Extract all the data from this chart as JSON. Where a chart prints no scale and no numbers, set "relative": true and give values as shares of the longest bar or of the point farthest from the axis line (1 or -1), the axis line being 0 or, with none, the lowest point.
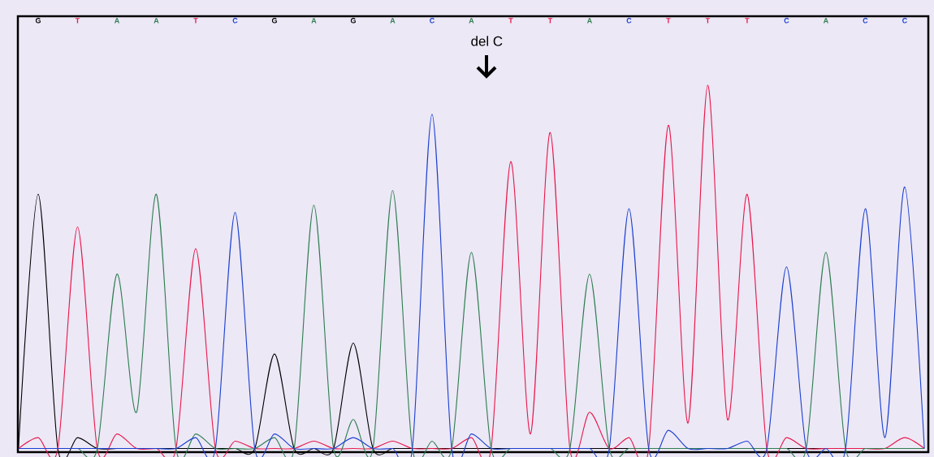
{
  "chart_data": {
    "type": "line",
    "relative": true,
    "marker": "none",
    "line_style": "solid",
    "categories": [
      null,
      "G",
      null,
      "T",
      null,
      "A",
      null,
      "A",
      null,
      "T",
      null,
      "C",
      null,
      "G",
      null,
      "A",
      null,
      "G",
      null,
      "A",
      null,
      "C",
      null,
      "A",
      null,
      "T",
      null,
      "T",
      null,
      "A",
      null,
      "C",
      null,
      "T",
      null,
      "T",
      null,
      "T",
      null,
      "C",
      null,
      "A",
      null,
      "C",
      null,
      "C",
      null
    ],
    "annotations": [
      "del C"
    ],
    "series": [
      {
        "color": "#000000",
        "values": [
          0,
          0.7,
          0,
          0.03,
          0,
          0,
          0,
          0,
          0,
          0,
          0,
          0,
          0,
          0.26,
          0,
          0,
          0,
          0.29,
          0,
          0,
          0,
          0,
          0,
          0,
          0,
          0,
          0,
          0,
          0,
          0,
          0,
          0,
          0,
          0,
          0,
          0,
          0,
          0,
          0,
          0,
          0,
          0,
          0,
          0,
          0,
          null,
          null
        ]
      },
      {
        "color": "#e8174a",
        "values": [
          0,
          0.03,
          0,
          0.61,
          0,
          0.04,
          0,
          0,
          0,
          0.55,
          0,
          0.02,
          0,
          0,
          0,
          0.02,
          0,
          0,
          0,
          0.02,
          0,
          0,
          0,
          0.03,
          0,
          0.79,
          0.04,
          0.87,
          0,
          0.1,
          0,
          0.03,
          0,
          0.89,
          0.07,
          1,
          0.08,
          0.7,
          0,
          0.03,
          0,
          0,
          0,
          0,
          0,
          0.03,
          0
        ]
      },
      {
        "color": "#2e7d4f",
        "values": [
          null,
          null,
          0,
          0,
          0,
          0.48,
          0.1,
          0.7,
          0,
          0.04,
          0,
          0,
          0,
          0.03,
          0,
          0.67,
          0,
          0.08,
          0,
          0.71,
          0,
          0.02,
          0,
          0.54,
          0,
          0,
          0,
          0,
          0,
          0.48,
          0,
          0,
          0,
          0,
          0,
          0,
          0,
          0,
          0,
          0,
          0,
          0.54,
          0,
          0,
          0,
          0,
          0
        ]
      },
      {
        "color": "#1a3fcf",
        "values": [
          0,
          0,
          0,
          0,
          0,
          0,
          0,
          0,
          0,
          0.03,
          0,
          0.65,
          0,
          0.04,
          0,
          0,
          0,
          0.03,
          0,
          0,
          0,
          0.92,
          0,
          0.04,
          0,
          0,
          0,
          0,
          0,
          0,
          0,
          0.66,
          0,
          0.05,
          0,
          0,
          0,
          0.02,
          0,
          0.5,
          0,
          0,
          0,
          0.66,
          0.03,
          0.72,
          0
        ]
      }
    ]
  }
}
